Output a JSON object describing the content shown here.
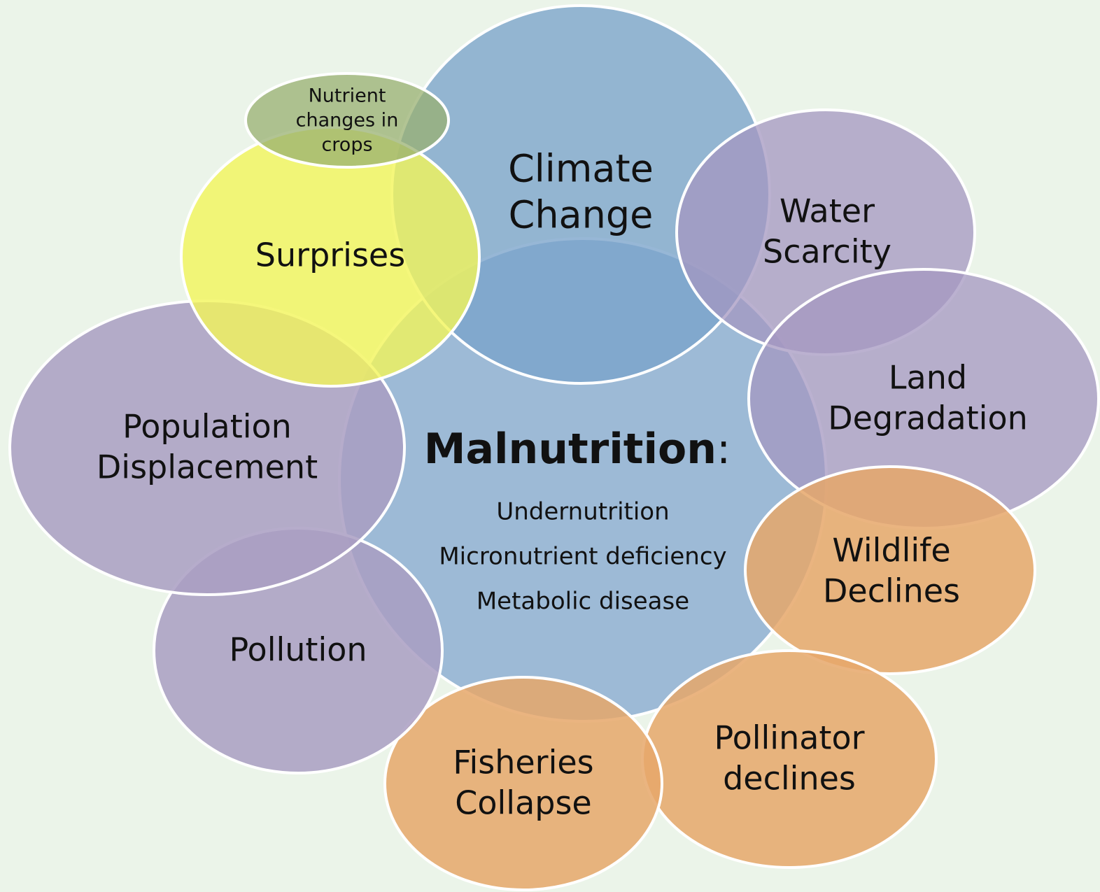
{
  "center": {
    "title": "Malnutrition",
    "colon": ":",
    "items": [
      "Undernutrition",
      "Micronutrient deficiency",
      "Metabolic disease"
    ]
  },
  "nodes": [
    {
      "label": [
        "Climate",
        "Change"
      ]
    },
    {
      "label": [
        "Water",
        "Scarcity"
      ]
    },
    {
      "label": [
        "Land",
        "Degradation"
      ]
    },
    {
      "label": [
        "Wildlife",
        "Declines"
      ]
    },
    {
      "label": [
        "Pollinator",
        "declines"
      ]
    },
    {
      "label": [
        "Fisheries",
        "Collapse"
      ]
    },
    {
      "label": [
        "Pollution"
      ]
    },
    {
      "label": [
        "Population",
        "Displacement"
      ]
    },
    {
      "label": [
        "Surprises"
      ]
    },
    {
      "label": [
        "Nutrient",
        "changes in",
        "crops"
      ]
    }
  ]
}
